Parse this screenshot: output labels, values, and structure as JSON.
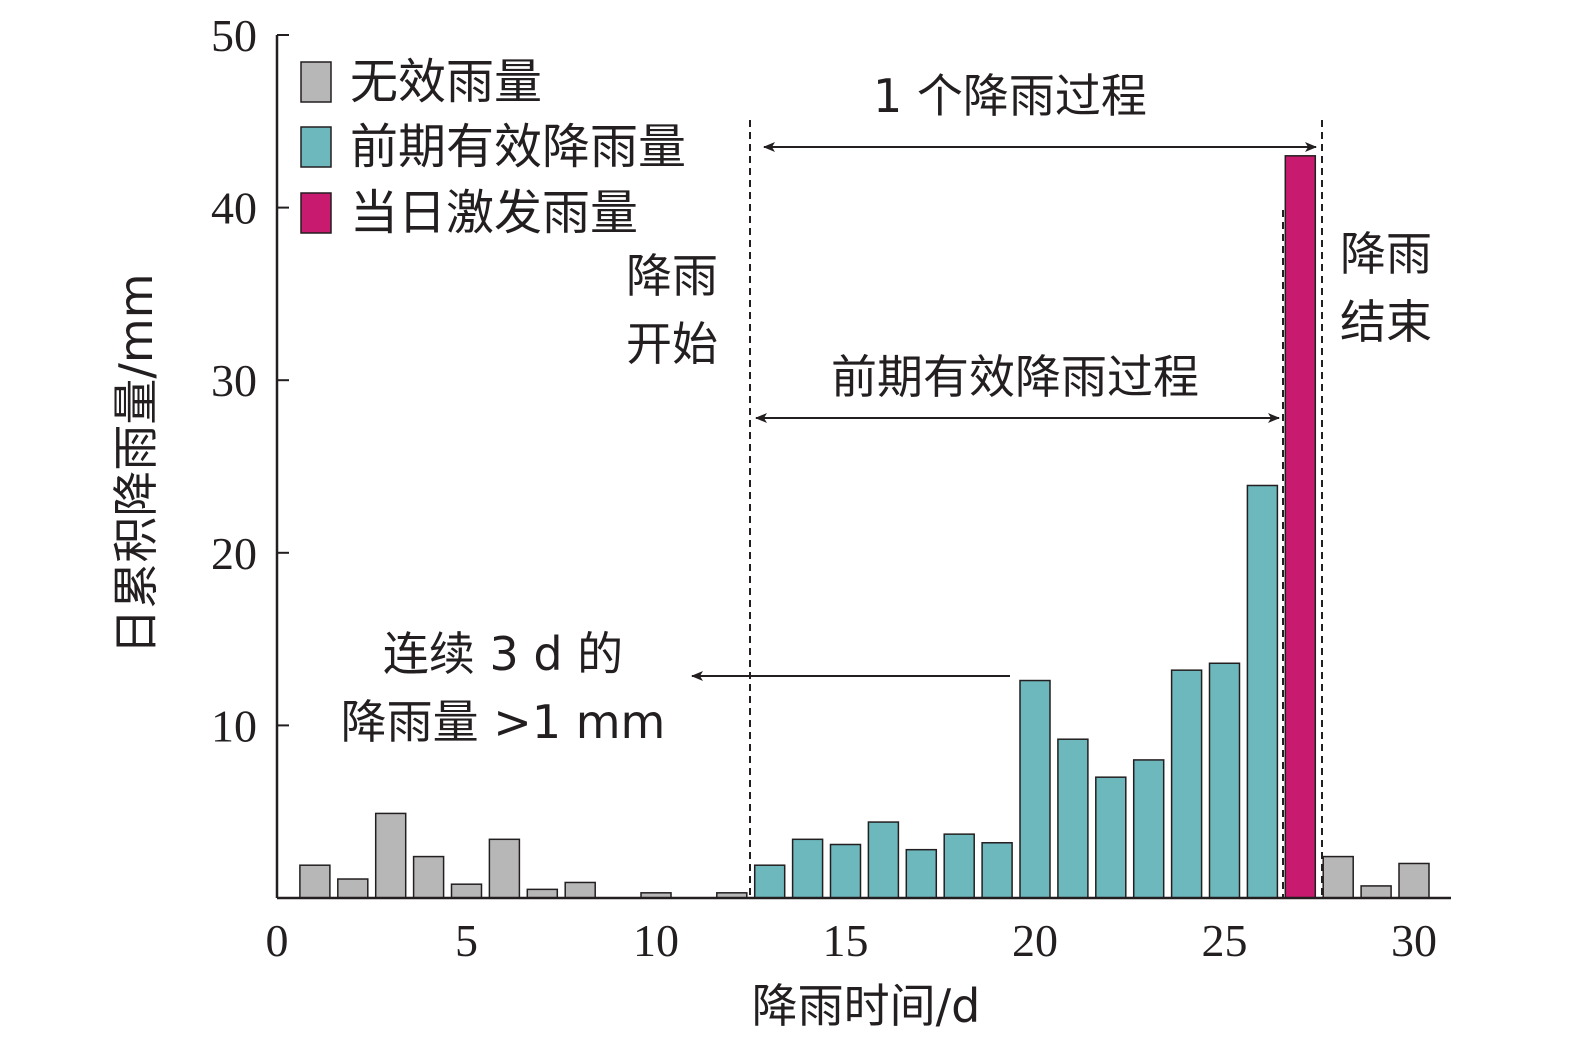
{
  "chart_data": {
    "type": "bar",
    "xlabel": "降雨时间/d",
    "ylabel": "日累积降雨量/mm",
    "xlim": [
      0,
      31
    ],
    "ylim": [
      0,
      50
    ],
    "xticks": [
      "0",
      "5",
      "10",
      "15",
      "20",
      "25",
      "30"
    ],
    "yticks": [
      "10",
      "20",
      "30",
      "40",
      "50"
    ],
    "legend_position": "top-left",
    "series": [
      {
        "name": "无效雨量",
        "color": "#b8b7b7",
        "points": [
          [
            1,
            1.9
          ],
          [
            2,
            1.1
          ],
          [
            3,
            4.9
          ],
          [
            4,
            2.4
          ],
          [
            5,
            0.8
          ],
          [
            6,
            3.4
          ],
          [
            7,
            0.5
          ],
          [
            8,
            0.9
          ],
          [
            10,
            0.3
          ],
          [
            12,
            0.3
          ],
          [
            28,
            2.4
          ],
          [
            29,
            0.7
          ],
          [
            30,
            2.0
          ]
        ]
      },
      {
        "name": "前期有效降雨量",
        "color": "#6cb8bd",
        "points": [
          [
            13,
            1.9
          ],
          [
            14,
            3.4
          ],
          [
            15,
            3.1
          ],
          [
            16,
            4.4
          ],
          [
            17,
            2.8
          ],
          [
            18,
            3.7
          ],
          [
            19,
            3.2
          ],
          [
            20,
            12.6
          ],
          [
            21,
            9.2
          ],
          [
            22,
            7.0
          ],
          [
            23,
            8.0
          ],
          [
            24,
            13.2
          ],
          [
            25,
            13.6
          ],
          [
            26,
            23.9
          ]
        ]
      },
      {
        "name": "当日激发雨量",
        "color": "#c81a6e",
        "points": [
          [
            27,
            43.0
          ]
        ]
      }
    ],
    "annotations": {
      "process": "1 个降雨过程",
      "start_line1": "降雨",
      "start_line2": "开始",
      "end_line1": "降雨",
      "end_line2": "结束",
      "antecedent": "前期有效降雨过程",
      "rule_line1": "连续 3 d 的",
      "rule_line2": "降雨量 >1 mm"
    }
  }
}
